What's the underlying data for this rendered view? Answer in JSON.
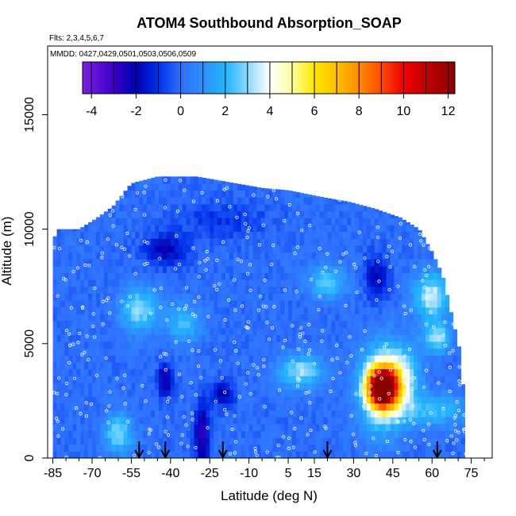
{
  "chart_data": {
    "type": "heatmap",
    "title": "ATOM4 Southbound Absorption_SOAP",
    "flights_note": "Flts: 2,3,4,5,6,7",
    "dates_note": "MMDD: 0427,0429,0501,0503,0506,0509",
    "xlabel": "Latitude (deg N)",
    "ylabel": "Altitude (m)",
    "xlim": [
      -87,
      83
    ],
    "ylim": [
      0,
      18000
    ],
    "x_ticks": [
      -85,
      -70,
      -55,
      -40,
      -25,
      -10,
      5,
      15,
      30,
      45,
      60,
      75
    ],
    "y_ticks": [
      0,
      5000,
      10000,
      15000
    ],
    "colorbar": {
      "min": -4.4,
      "max": 12.3,
      "ticks": [
        -4,
        -2,
        0,
        2,
        4,
        6,
        8,
        10,
        12
      ],
      "stops": [
        {
          "v": -4.4,
          "c": "#7a1fe0"
        },
        {
          "v": -3.0,
          "c": "#3a00c8"
        },
        {
          "v": -2.0,
          "c": "#0000b0"
        },
        {
          "v": -1.0,
          "c": "#0030e8"
        },
        {
          "v": 0.0,
          "c": "#2f6fff"
        },
        {
          "v": 1.0,
          "c": "#2e90ff"
        },
        {
          "v": 2.0,
          "c": "#23b4ff"
        },
        {
          "v": 3.0,
          "c": "#8cd8ff"
        },
        {
          "v": 4.0,
          "c": "#ffffff"
        },
        {
          "v": 5.0,
          "c": "#ffffa0"
        },
        {
          "v": 6.0,
          "c": "#ffe600"
        },
        {
          "v": 7.0,
          "c": "#ffbf00"
        },
        {
          "v": 8.0,
          "c": "#ff8c00"
        },
        {
          "v": 9.0,
          "c": "#ff4a00"
        },
        {
          "v": 10.0,
          "c": "#ee0000"
        },
        {
          "v": 11.0,
          "c": "#c00000"
        },
        {
          "v": 12.3,
          "c": "#8b0000"
        }
      ]
    },
    "profile_extent": [
      {
        "lat": -85,
        "top": 9500
      },
      {
        "lat": -83,
        "top": 10000
      },
      {
        "lat": -75,
        "top": 10000
      },
      {
        "lat": -68,
        "top": 10500
      },
      {
        "lat": -62,
        "top": 11000
      },
      {
        "lat": -55,
        "top": 12000
      },
      {
        "lat": -45,
        "top": 12300
      },
      {
        "lat": -30,
        "top": 12300
      },
      {
        "lat": -15,
        "top": 12000
      },
      {
        "lat": -5,
        "top": 11800
      },
      {
        "lat": 5,
        "top": 11700
      },
      {
        "lat": 18,
        "top": 11400
      },
      {
        "lat": 28,
        "top": 11200
      },
      {
        "lat": 38,
        "top": 10900
      },
      {
        "lat": 48,
        "top": 10500
      },
      {
        "lat": 55,
        "top": 10000
      },
      {
        "lat": 60,
        "top": 9000
      },
      {
        "lat": 64,
        "top": 8000
      },
      {
        "lat": 68,
        "top": 6000
      },
      {
        "lat": 71,
        "top": 4500
      },
      {
        "lat": 72,
        "top": 2800
      },
      {
        "lat": 73,
        "top": 0
      }
    ],
    "background_value": 0.0,
    "features": [
      {
        "lat": 41,
        "alt": 3100,
        "dlat": 4,
        "dalt": 600,
        "value": 12.0
      },
      {
        "lat": 41,
        "alt": 3100,
        "dlat": 6,
        "dalt": 1300,
        "value": 4.5
      },
      {
        "lat": -28,
        "alt": 1000,
        "dlat": 2,
        "dalt": 1000,
        "value": -2.8
      },
      {
        "lat": -42,
        "alt": 3400,
        "dlat": 2,
        "dalt": 500,
        "value": -2.6
      },
      {
        "lat": -42,
        "alt": 9100,
        "dlat": 6,
        "dalt": 500,
        "value": -2.0
      },
      {
        "lat": -20,
        "alt": 2800,
        "dlat": 3,
        "dalt": 400,
        "value": -2.2
      },
      {
        "lat": 39,
        "alt": 7900,
        "dlat": 3,
        "dalt": 700,
        "value": -2.0
      },
      {
        "lat": 20,
        "alt": 7700,
        "dlat": 5,
        "dalt": 500,
        "value": 2.6
      },
      {
        "lat": 10,
        "alt": 3800,
        "dlat": 6,
        "dalt": 500,
        "value": 3.2
      },
      {
        "lat": -52,
        "alt": 6500,
        "dlat": 5,
        "dalt": 700,
        "value": 3.0
      },
      {
        "lat": -60,
        "alt": 1100,
        "dlat": 4,
        "dalt": 600,
        "value": 3.0
      },
      {
        "lat": 60,
        "alt": 7100,
        "dlat": 5,
        "dalt": 700,
        "value": 3.6
      },
      {
        "lat": 62,
        "alt": 5300,
        "dlat": 4,
        "dalt": 500,
        "value": 3.0
      },
      {
        "lat": -20,
        "alt": 10400,
        "dlat": 12,
        "dalt": 600,
        "value": -1.0
      },
      {
        "lat": -35,
        "alt": 5900,
        "dlat": 5,
        "dalt": 600,
        "value": 2.2
      },
      {
        "lat": 49,
        "alt": 3600,
        "dlat": 5,
        "dalt": 900,
        "value": 2.5
      },
      {
        "lat": 60,
        "alt": 2100,
        "dlat": 10,
        "dalt": 500,
        "value": 2.2
      }
    ],
    "arrow_latitudes": [
      -52,
      -42,
      -20,
      20,
      62
    ]
  }
}
